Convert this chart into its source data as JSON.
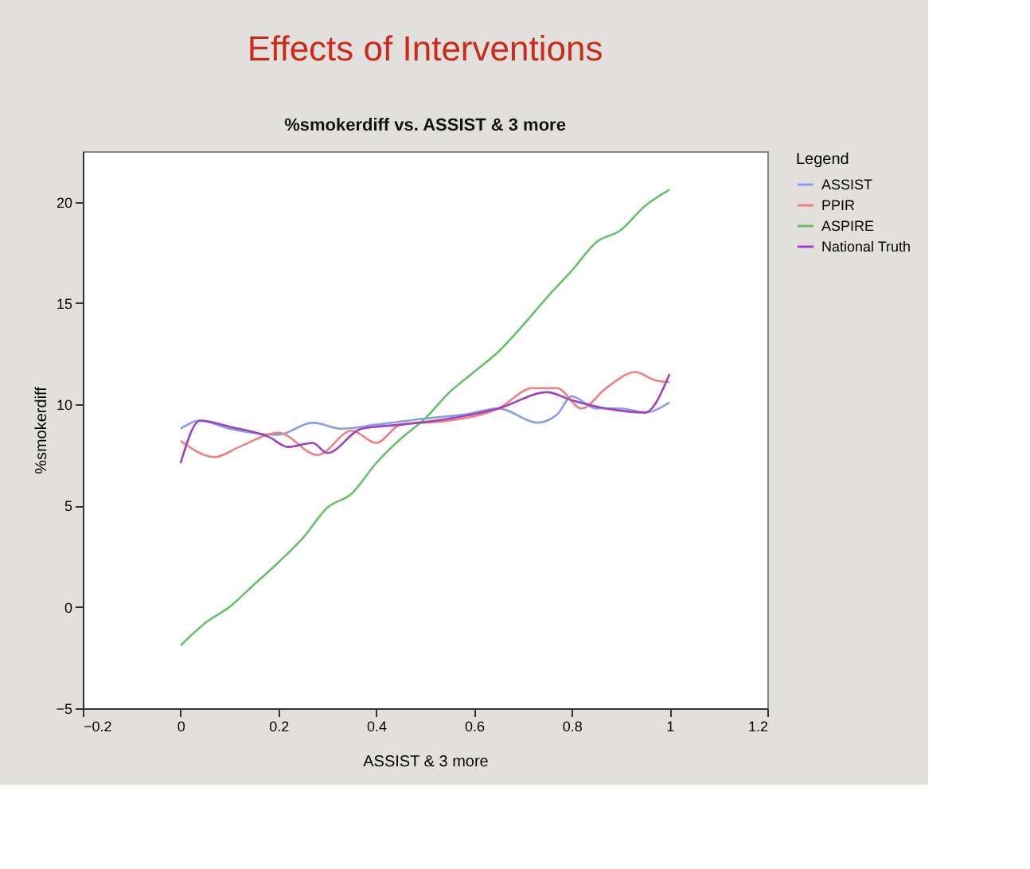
{
  "chart_data": {
    "type": "line",
    "title": "Effects of Interventions",
    "subtitle": "%smokerdiff vs. ASSIST & 3 more",
    "xlabel": "ASSIST & 3 more",
    "ylabel": "%smokerdiff",
    "legend_title": "Legend",
    "legend": "right",
    "grid": false,
    "marker": "none",
    "line_style": "solid",
    "xlim": [
      -0.2,
      1.2
    ],
    "xticks": [
      -0.2,
      0,
      0.2,
      0.4,
      0.6,
      0.8,
      1,
      1.2
    ],
    "ylim": [
      -5,
      22.5
    ],
    "yticks": [
      -5,
      0,
      5,
      10,
      15,
      20
    ],
    "series": [
      {
        "name": "ASSIST",
        "color": "#8a9ee8",
        "x": [
          0,
          0.04,
          0.1,
          0.2,
          0.27,
          0.33,
          0.4,
          0.5,
          0.58,
          0.65,
          0.73,
          0.77,
          0.8,
          0.85,
          0.9,
          0.95,
          1
        ],
        "values": [
          8.8,
          9.2,
          8.8,
          8.5,
          9.1,
          8.8,
          9.0,
          9.3,
          9.5,
          9.8,
          9.1,
          9.5,
          10.4,
          9.8,
          9.8,
          9.6,
          10.1
        ]
      },
      {
        "name": "PPIR",
        "color": "#f08080",
        "x": [
          0,
          0.07,
          0.12,
          0.2,
          0.28,
          0.35,
          0.4,
          0.45,
          0.55,
          0.65,
          0.72,
          0.77,
          0.82,
          0.87,
          0.93,
          0.97,
          1
        ],
        "values": [
          8.2,
          7.4,
          7.9,
          8.6,
          7.5,
          8.7,
          8.1,
          9.0,
          9.2,
          9.8,
          10.8,
          10.8,
          9.8,
          10.8,
          11.6,
          11.2,
          11.1
        ]
      },
      {
        "name": "ASPIRE",
        "color": "#66c266",
        "x": [
          0,
          0.05,
          0.1,
          0.15,
          0.2,
          0.25,
          0.3,
          0.35,
          0.4,
          0.45,
          0.5,
          0.55,
          0.6,
          0.65,
          0.7,
          0.75,
          0.8,
          0.85,
          0.9,
          0.95,
          1
        ],
        "values": [
          -1.9,
          -0.8,
          0,
          1.1,
          2.2,
          3.4,
          4.9,
          5.6,
          7.1,
          8.3,
          9.3,
          10.6,
          11.6,
          12.6,
          13.9,
          15.3,
          16.6,
          18.0,
          18.6,
          19.8,
          20.6
        ]
      },
      {
        "name": "National Truth",
        "color": "#a040c0",
        "x": [
          0,
          0.04,
          0.1,
          0.18,
          0.22,
          0.27,
          0.3,
          0.37,
          0.45,
          0.55,
          0.65,
          0.75,
          0.8,
          0.87,
          0.95,
          1
        ],
        "values": [
          7.1,
          9.2,
          8.9,
          8.4,
          7.9,
          8.1,
          7.6,
          8.8,
          9.0,
          9.3,
          9.8,
          10.6,
          10.2,
          9.8,
          9.6,
          11.5
        ]
      }
    ]
  }
}
